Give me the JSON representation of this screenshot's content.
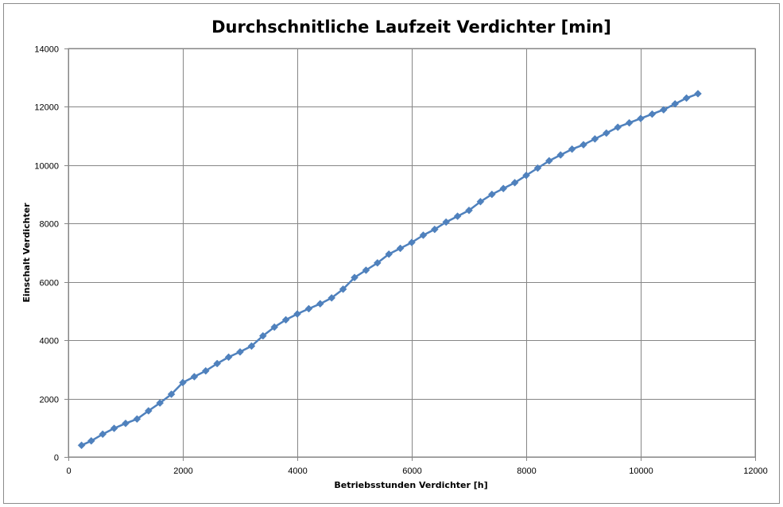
{
  "chart_data": {
    "type": "scatter",
    "title": "Durchschnitliche Laufzeit Verdichter [min]",
    "xlabel": "Betriebsstunden Verdichter [h]",
    "ylabel": "Einschalt Verdichter",
    "xlim": [
      0,
      12000
    ],
    "ylim": [
      0,
      14000
    ],
    "x_ticks": [
      "0",
      "2000",
      "4000",
      "6000",
      "8000",
      "10000",
      "12000"
    ],
    "y_ticks": [
      "0",
      "2000",
      "4000",
      "6000",
      "8000",
      "10000",
      "12000",
      "14000"
    ],
    "x_tick_values": [
      0,
      2000,
      4000,
      6000,
      8000,
      10000,
      12000
    ],
    "y_tick_values": [
      0,
      2000,
      4000,
      6000,
      8000,
      10000,
      12000,
      14000
    ],
    "grid": true,
    "legend": "none",
    "marker": "diamond",
    "line": true,
    "color": "#4f81bd",
    "series": [
      {
        "x": [
          230,
          400,
          600,
          800,
          1000,
          1200,
          1400,
          1600,
          1800,
          2000,
          2200,
          2400,
          2600,
          2800,
          3000,
          3200,
          3400,
          3600,
          3800,
          4000,
          4200,
          4400,
          4600,
          4800,
          5000,
          5200,
          5400,
          5600,
          5800,
          6000,
          6200,
          6400,
          6600,
          6800,
          7000,
          7200,
          7400,
          7600,
          7800,
          8000,
          8200,
          8400,
          8600,
          8800,
          9000,
          9200,
          9400,
          9600,
          9800,
          10000,
          10200,
          10400,
          10600,
          10800,
          11000
        ],
        "y": [
          400,
          550,
          780,
          980,
          1150,
          1300,
          1580,
          1850,
          2150,
          2550,
          2750,
          2950,
          3200,
          3420,
          3600,
          3800,
          4150,
          4450,
          4700,
          4900,
          5080,
          5250,
          5450,
          5750,
          6150,
          6400,
          6650,
          6950,
          7150,
          7350,
          7600,
          7800,
          8050,
          8250,
          8450,
          8750,
          9000,
          9200,
          9400,
          9650,
          9900,
          10150,
          10350,
          10550,
          10700,
          10900,
          11100,
          11300,
          11450,
          11600,
          11750,
          11900,
          12100,
          12300,
          12450
        ]
      }
    ]
  }
}
